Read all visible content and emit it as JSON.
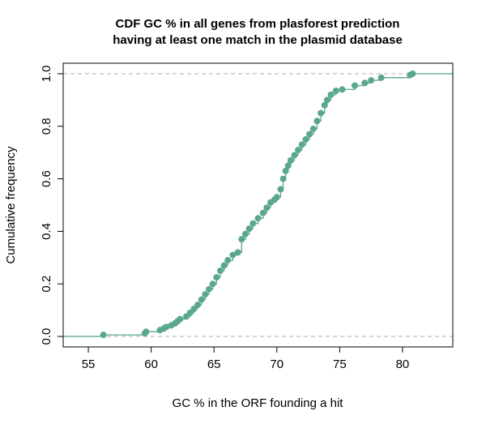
{
  "chart_data": {
    "type": "scatter",
    "title_line1": "CDF GC % in all genes from plasforest prediction",
    "title_line2": "having at least one match in the plasmid database",
    "xlabel": "GC % in the ORF founding a hit",
    "ylabel": "Cumulative frequency",
    "xlim": [
      53,
      84
    ],
    "ylim": [
      -0.04,
      1.04
    ],
    "xticks": [
      55,
      60,
      65,
      70,
      75,
      80
    ],
    "yticks": [
      0.0,
      0.2,
      0.4,
      0.6,
      0.8,
      1.0
    ],
    "xtick_labels": [
      "55",
      "60",
      "65",
      "70",
      "75",
      "80"
    ],
    "ytick_labels": [
      "0.0",
      "0.2",
      "0.4",
      "0.6",
      "0.8",
      "1.0"
    ],
    "reference_lines_y": [
      0,
      1
    ],
    "grid": false,
    "legend": "none",
    "point_color": "#5aa88a",
    "reference_line_color": "#bdbdbd",
    "series": [
      {
        "x": [
          56.2,
          59.5,
          59.6,
          60.7,
          61.0,
          61.2,
          61.6,
          61.9,
          62.1,
          62.3,
          62.8,
          63.1,
          63.4,
          63.7,
          64.0,
          64.3,
          64.6,
          64.9,
          65.2,
          65.5,
          65.8,
          66.1,
          66.5,
          66.9,
          67.2,
          67.5,
          67.8,
          68.1,
          68.5,
          68.9,
          69.2,
          69.5,
          69.8,
          70.0,
          70.3,
          70.5,
          70.7,
          70.9,
          71.1,
          71.4,
          71.7,
          72.0,
          72.3,
          72.6,
          72.9,
          73.2,
          73.5,
          73.8,
          74.0,
          74.3,
          74.7,
          75.2,
          76.2,
          77.0,
          77.5,
          78.3,
          80.6,
          80.8
        ],
        "y": [
          0.006,
          0.012,
          0.018,
          0.024,
          0.03,
          0.036,
          0.042,
          0.05,
          0.058,
          0.066,
          0.076,
          0.09,
          0.105,
          0.12,
          0.14,
          0.16,
          0.18,
          0.2,
          0.225,
          0.25,
          0.27,
          0.29,
          0.31,
          0.32,
          0.37,
          0.39,
          0.41,
          0.43,
          0.45,
          0.47,
          0.49,
          0.51,
          0.52,
          0.53,
          0.56,
          0.6,
          0.63,
          0.65,
          0.67,
          0.69,
          0.71,
          0.73,
          0.75,
          0.77,
          0.79,
          0.82,
          0.85,
          0.88,
          0.9,
          0.92,
          0.935,
          0.94,
          0.955,
          0.965,
          0.975,
          0.985,
          0.995,
          1.0
        ]
      }
    ]
  }
}
